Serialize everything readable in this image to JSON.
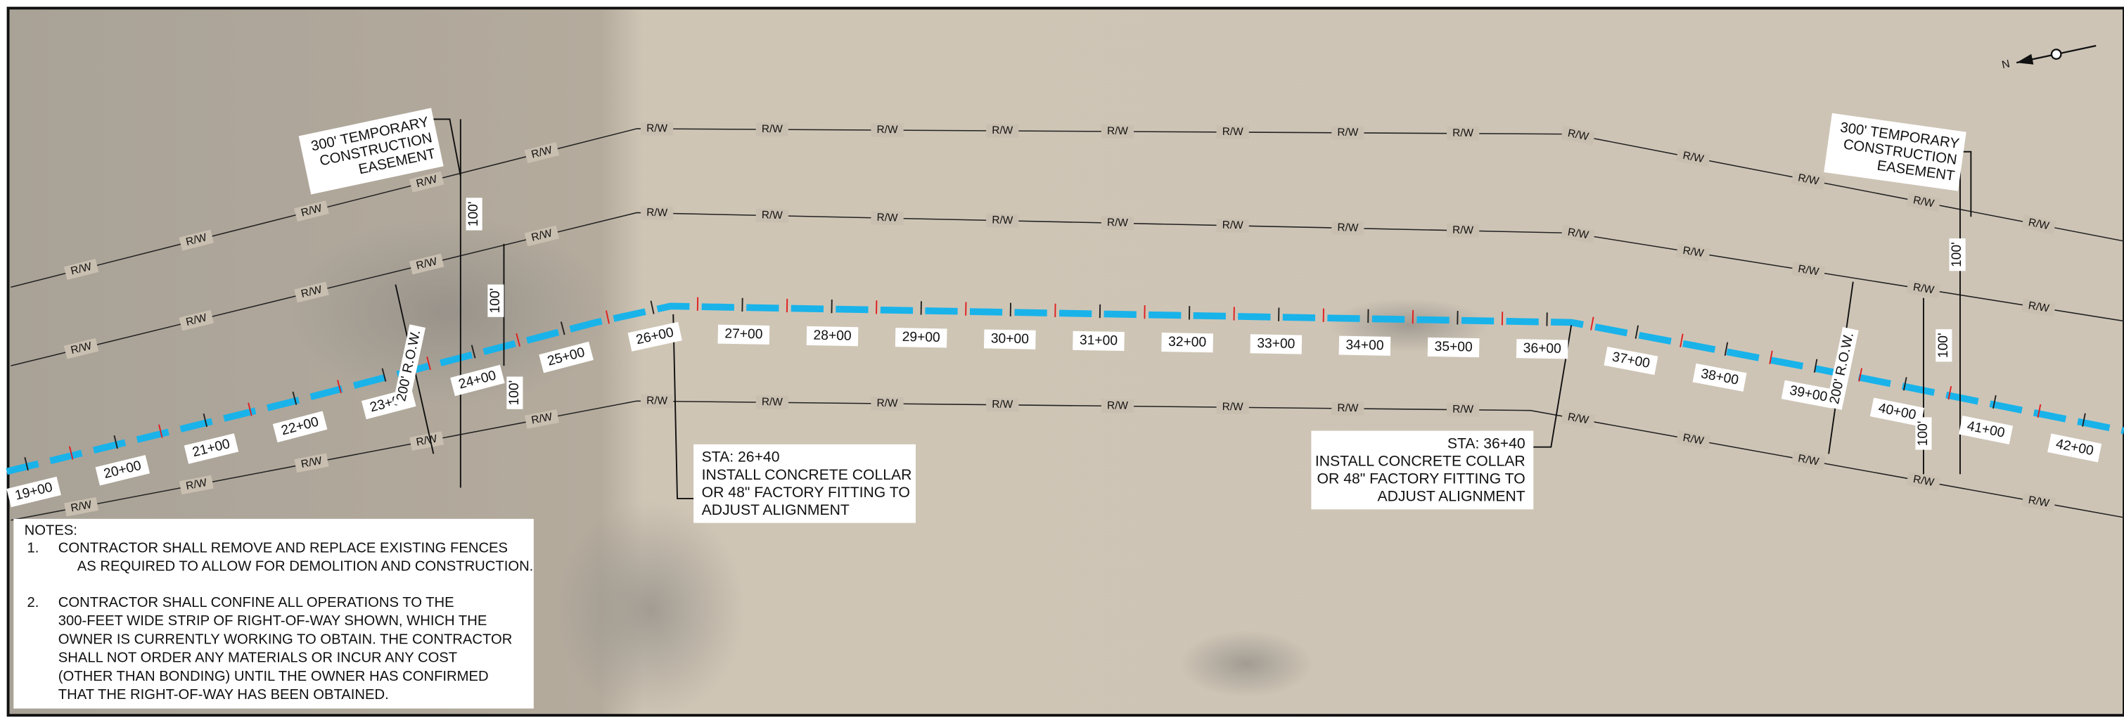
{
  "north_label": "N",
  "row_label": "R/W",
  "stations": [
    "19+00",
    "20+00",
    "21+00",
    "22+00",
    "23+00",
    "24+00",
    "25+00",
    "26+00",
    "27+00",
    "28+00",
    "29+00",
    "30+00",
    "31+00",
    "32+00",
    "33+00",
    "34+00",
    "35+00",
    "36+00",
    "37+00",
    "38+00",
    "39+00",
    "40+00",
    "41+00",
    "42+00"
  ],
  "dimensions": {
    "half_width": "100'",
    "row_width": "200' R.O.W."
  },
  "easement_labels": [
    [
      "300' TEMPORARY",
      "CONSTRUCTION",
      "EASEMENT"
    ],
    [
      "300' TEMPORARY",
      "CONSTRUCTION",
      "EASEMENT"
    ]
  ],
  "callouts": [
    {
      "lines": [
        "STA: 26+40",
        "INSTALL CONCRETE COLLAR",
        "OR 48\" FACTORY FITTING TO",
        "ADJUST ALIGNMENT"
      ]
    },
    {
      "lines": [
        "STA: 36+40",
        "INSTALL CONCRETE COLLAR",
        "OR 48\" FACTORY FITTING TO",
        "ADJUST ALIGNMENT"
      ]
    }
  ],
  "notes": {
    "heading": "NOTES:",
    "items": [
      {
        "number": "1.",
        "lines": [
          "CONTRACTOR SHALL REMOVE AND REPLACE EXISTING FENCES",
          "AS REQUIRED TO ALLOW FOR DEMOLITION AND CONSTRUCTION."
        ]
      },
      {
        "number": "2.",
        "lines": [
          "CONTRACTOR SHALL CONFINE ALL OPERATIONS TO THE",
          "300-FEET WIDE STRIP OF RIGHT-OF-WAY SHOWN, WHICH THE",
          "OWNER IS CURRENTLY WORKING TO OBTAIN. THE CONTRACTOR",
          "SHALL NOT ORDER ANY MATERIALS OR INCUR ANY COST",
          "(OTHER THAN BONDING) UNTIL THE OWNER HAS CONFIRMED",
          "THAT THE RIGHT-OF-WAY HAS BEEN OBTAINED."
        ]
      }
    ]
  }
}
